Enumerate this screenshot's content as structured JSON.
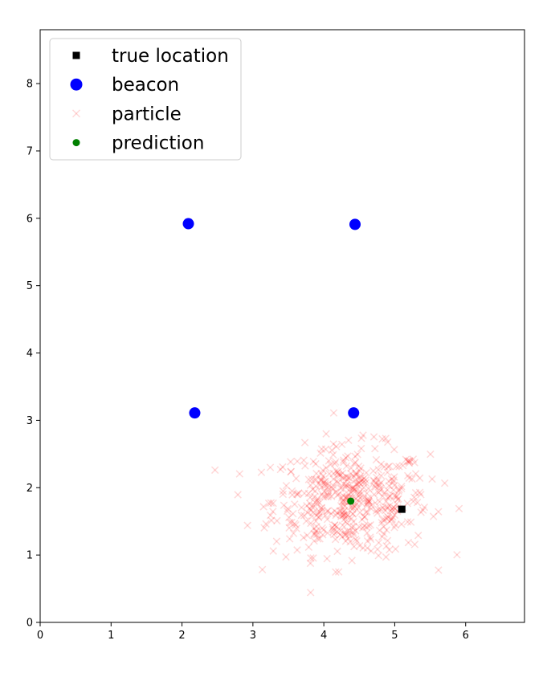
{
  "chart_data": {
    "type": "scatter",
    "title": "",
    "xlabel": "",
    "ylabel": "",
    "xlim": [
      0,
      6.83
    ],
    "ylim": [
      0,
      8.8
    ],
    "xticks": [
      0,
      1,
      2,
      3,
      4,
      5,
      6
    ],
    "yticks": [
      0,
      1,
      2,
      3,
      4,
      5,
      6,
      7,
      8
    ],
    "grid": false,
    "legend_position": "top-left",
    "series": [
      {
        "name": "true location",
        "marker": "square",
        "color": "#000000",
        "points": [
          [
            5.1,
            1.68
          ]
        ]
      },
      {
        "name": "beacon",
        "marker": "circle",
        "color": "#0000ff",
        "points": [
          [
            2.09,
            5.92
          ],
          [
            4.44,
            5.91
          ],
          [
            2.18,
            3.11
          ],
          [
            4.42,
            3.11
          ]
        ]
      },
      {
        "name": "particle",
        "marker": "x",
        "color": "#ff0000",
        "opacity": 0.15,
        "count": 500,
        "center": [
          4.38,
          1.8
        ],
        "spread": [
          0.55,
          0.4
        ]
      },
      {
        "name": "prediction",
        "marker": "circle",
        "color": "#008000",
        "points": [
          [
            4.38,
            1.8
          ]
        ]
      }
    ]
  }
}
